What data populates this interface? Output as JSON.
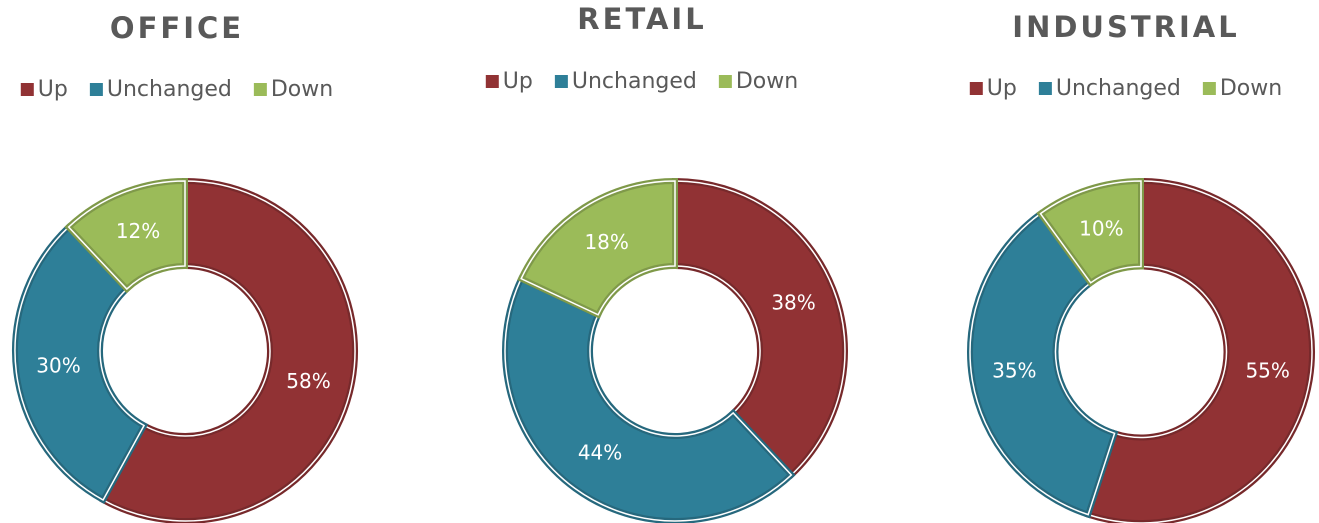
{
  "chart_data": [
    {
      "type": "pie",
      "title": "OFFICE",
      "categories": [
        "Up",
        "Unchanged",
        "Down"
      ],
      "values": [
        58,
        30,
        12
      ],
      "value_labels": [
        "58%",
        "30%",
        "12%"
      ],
      "colors": [
        "#913234",
        "#2e7f98",
        "#9bbb59"
      ],
      "donut": true
    },
    {
      "type": "pie",
      "title": "RETAIL",
      "categories": [
        "Up",
        "Unchanged",
        "Down"
      ],
      "values": [
        38,
        44,
        18
      ],
      "value_labels": [
        "38%",
        "44%",
        "18%"
      ],
      "colors": [
        "#913234",
        "#2e7f98",
        "#9bbb59"
      ],
      "donut": true
    },
    {
      "type": "pie",
      "title": "INDUSTRIAL",
      "categories": [
        "Up",
        "Unchanged",
        "Down"
      ],
      "values": [
        55,
        35,
        10
      ],
      "value_labels": [
        "55%",
        "35%",
        "10%"
      ],
      "colors": [
        "#913234",
        "#2e7f98",
        "#9bbb59"
      ],
      "donut": true
    }
  ]
}
